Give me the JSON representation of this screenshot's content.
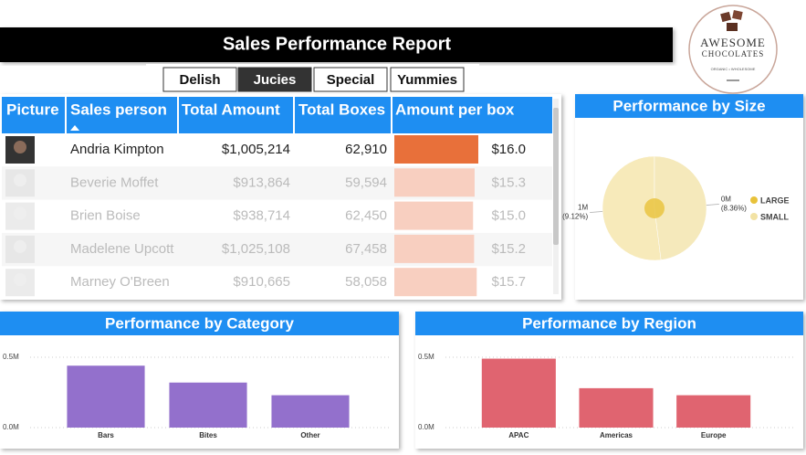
{
  "header": {
    "title": "Sales Performance Report"
  },
  "logo": {
    "name": "AWESOME",
    "sub": "CHOCOLATES",
    "tagline": "ORGANIC • WHOLESOME"
  },
  "tabs": [
    "Delish",
    "Jucies",
    "Special",
    "Yummies"
  ],
  "selected_tab": 1,
  "table": {
    "columns": [
      "Picture",
      "Sales person",
      "Total Amount",
      "Total Boxes",
      "Amount per box"
    ],
    "rows": [
      [
        "Andria Kimpton",
        "$1,005,214",
        "62,910",
        "$16.0"
      ],
      [
        "Beverie Moffet",
        "$913,864",
        "59,594",
        "$15.3"
      ],
      [
        "Brien Boise",
        "$938,714",
        "62,450",
        "$15.0"
      ],
      [
        "Madelene Upcott",
        "$1,025,108",
        "67,458",
        "$15.2"
      ],
      [
        "Marney O'Breen",
        "$910,665",
        "58,058",
        "$15.7"
      ]
    ]
  },
  "chart_data": [
    {
      "type": "pie",
      "title": "Performance by Size",
      "categories": [
        "LARGE",
        "SMALL"
      ],
      "values": [
        0.52,
        0.48
      ],
      "value_labels": [
        "1M",
        "0M"
      ],
      "percent_labels": [
        "(9.12%)",
        "(8.36%)"
      ],
      "colors": [
        "#e8c23a",
        "#f2e2a4"
      ],
      "legend": "right"
    },
    {
      "type": "bar",
      "title": "Performance by Category",
      "categories": [
        "Bars",
        "Bites",
        "Other"
      ],
      "values": [
        0.44,
        0.32,
        0.23
      ],
      "color": "#9370cc",
      "ylim": [
        0,
        0.5
      ],
      "yticks": [
        {
          "value": 0,
          "label": "0.0M"
        },
        {
          "value": 0.5,
          "label": "0.5M"
        }
      ],
      "grid": true
    },
    {
      "type": "bar",
      "title": "Performance by Region",
      "categories": [
        "APAC",
        "Americas",
        "Europe"
      ],
      "values": [
        0.49,
        0.28,
        0.23
      ],
      "color": "#e06470",
      "ylim": [
        0,
        0.5
      ],
      "yticks": [
        {
          "value": 0,
          "label": "0.0M"
        },
        {
          "value": 0.5,
          "label": "0.5M"
        }
      ],
      "grid": true
    }
  ]
}
